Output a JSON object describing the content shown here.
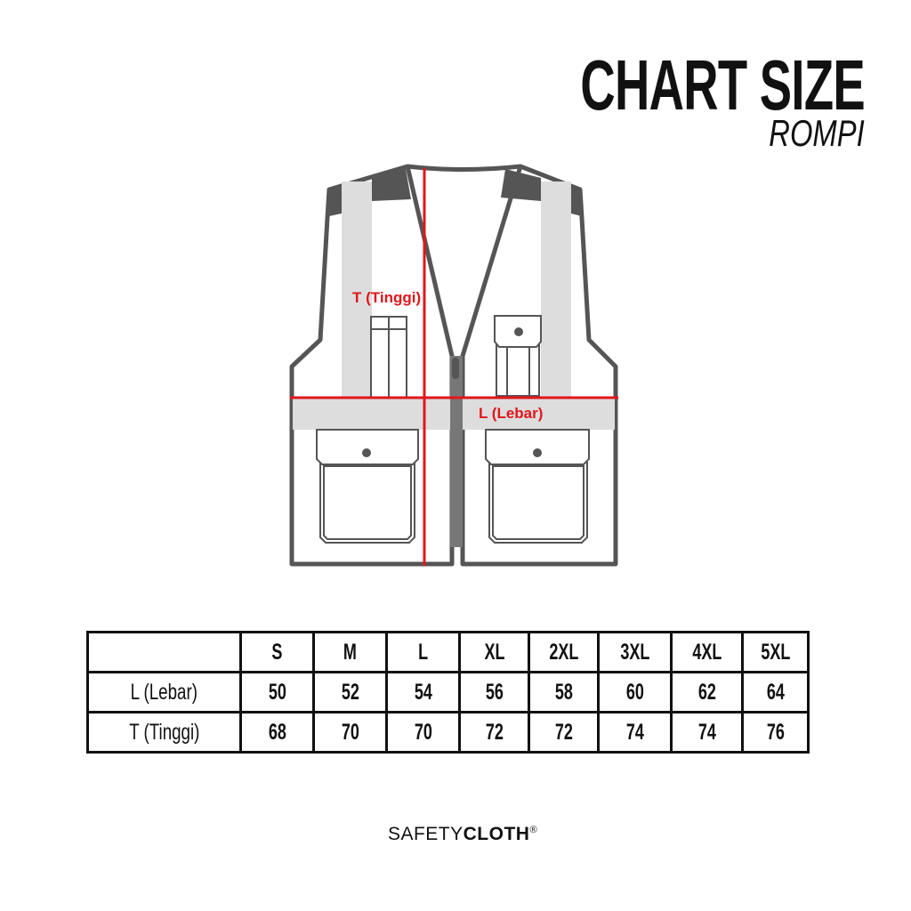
{
  "header": {
    "title": "CHART SIZE",
    "subtitle": "ROMPI"
  },
  "illustration": {
    "height_label": "T (Tinggi)",
    "width_label": "L (Lebar)",
    "measure_line_color": "#e1161c",
    "outline_color": "#555555",
    "reflective_color": "#dddddd"
  },
  "size_table": {
    "columns": [
      "S",
      "M",
      "L",
      "XL",
      "2XL",
      "3XL",
      "4XL",
      "5XL"
    ],
    "rows": [
      {
        "label": "L (Lebar)",
        "values": [
          "50",
          "52",
          "54",
          "56",
          "58",
          "60",
          "62",
          "64"
        ]
      },
      {
        "label": "T (Tinggi)",
        "values": [
          "68",
          "70",
          "70",
          "72",
          "72",
          "74",
          "74",
          "76"
        ]
      }
    ]
  },
  "brand": {
    "light": "SAFETY",
    "bold": "CLOTH",
    "mark": "®"
  }
}
